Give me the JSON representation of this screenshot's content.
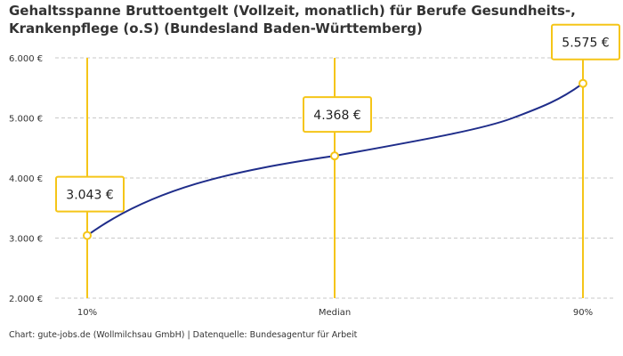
{
  "chart_data": {
    "type": "line",
    "title": "Gehaltsspanne Bruttoentgelt (Vollzeit, monatlich) für Berufe Gesundheits-, Krankenpflege (o.S) (Bundesland Baden-Württemberg)",
    "categories": [
      "10%",
      "Median",
      "90%"
    ],
    "values": [
      3043,
      4368,
      5575
    ],
    "data_labels": [
      "3.043 €",
      "4.368 €",
      "5.575 €"
    ],
    "ylim": [
      2000,
      6000
    ],
    "yticks": [
      2000,
      3000,
      4000,
      5000,
      6000
    ],
    "ytick_labels": [
      "2.000 €",
      "3.000 €",
      "4.000 €",
      "5.000 €",
      "6.000 €"
    ],
    "grid": "horizontal dashed",
    "xlabel": "",
    "ylabel": "",
    "colors": {
      "line": "#1f2d8a",
      "marker": "#f5c518",
      "grid": "#c8c8c8"
    }
  },
  "footer": "Chart: gute-jobs.de (Wollmilchsau GmbH) | Datenquelle: Bundesagentur für Arbeit"
}
